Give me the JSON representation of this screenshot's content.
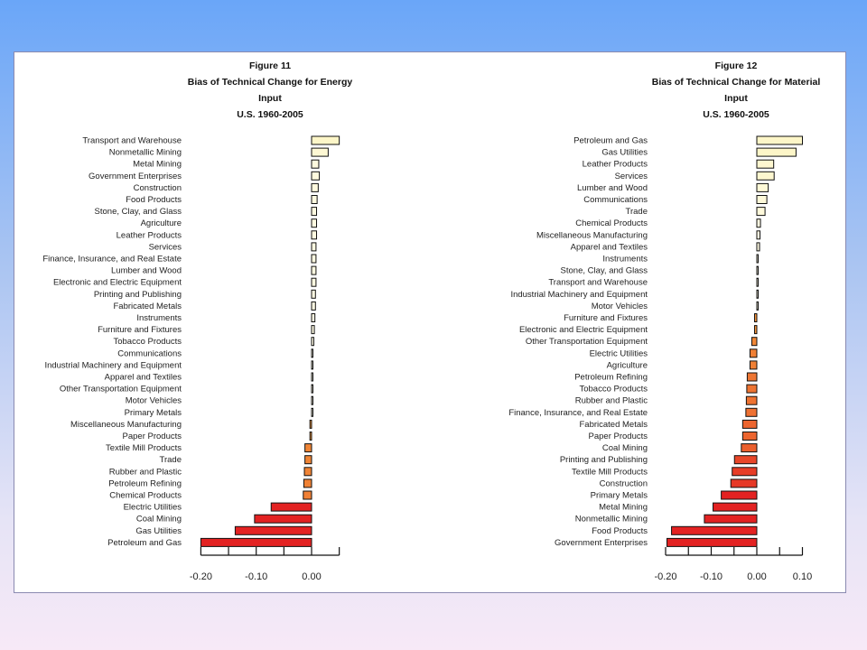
{
  "chart_data": [
    {
      "type": "bar",
      "orientation": "horizontal",
      "title": [
        "Figure 11",
        "Bias of Technical Change for Energy",
        "Input",
        "U.S. 1960-2005"
      ],
      "categories": [
        "Transport and Warehouse",
        "Nonmetallic Mining",
        "Metal Mining",
        "Government Enterprises",
        "Construction",
        "Food Products",
        "Stone, Clay, and Glass",
        "Agriculture",
        "Leather Products",
        "Services",
        "Finance, Insurance, and Real Estate",
        "Lumber and Wood",
        "Electronic and Electric Equipment",
        "Printing and Publishing",
        "Fabricated Metals",
        "Instruments",
        "Furniture and Fixtures",
        "Tobacco Products",
        "Communications",
        "Industrial Machinery and Equipment",
        "Apparel and Textiles",
        "Other Transportation Equipment",
        "Motor Vehicles",
        "Primary Metals",
        "Miscellaneous Manufacturing",
        "Paper Products",
        "Textile Mill Products",
        "Trade",
        "Rubber and Plastic",
        "Petroleum Refining",
        "Chemical Products",
        "Electric Utilities",
        "Coal Mining",
        "Gas Utilities",
        "Petroleum and Gas"
      ],
      "values": [
        0.05,
        0.03,
        0.013,
        0.014,
        0.012,
        0.01,
        0.009,
        0.009,
        0.009,
        0.008,
        0.008,
        0.008,
        0.008,
        0.007,
        0.007,
        0.006,
        0.005,
        0.004,
        0.002,
        0.002,
        0.002,
        0.002,
        0.002,
        0.002,
        -0.003,
        -0.003,
        -0.012,
        -0.012,
        -0.013,
        -0.014,
        -0.015,
        -0.073,
        -0.103,
        -0.138,
        -0.2
      ],
      "ticks": [
        "-0.20",
        "-0.10",
        "0.00"
      ],
      "xlim": [
        -0.2,
        0.05
      ],
      "positive_color": "#fdf6c8",
      "negative_color": "#e32222"
    },
    {
      "type": "bar",
      "orientation": "horizontal",
      "title": [
        "Figure 12",
        "Bias of Technical Change for Material",
        "Input",
        "U.S. 1960-2005"
      ],
      "categories": [
        "Petroleum and Gas",
        "Gas Utilities",
        "Leather Products",
        "Services",
        "Lumber and Wood",
        "Communications",
        "Trade",
        "Chemical Products",
        "Miscellaneous Manufacturing",
        "Apparel and Textiles",
        "Instruments",
        "Stone, Clay, and Glass",
        "Transport and Warehouse",
        "Industrial Machinery and Equipment",
        "Motor Vehicles",
        "Furniture and Fixtures",
        "Electronic and Electric Equipment",
        "Other Transportation Equipment",
        "Electric Utilities",
        "Agriculture",
        "Petroleum Refining",
        "Tobacco Products",
        "Rubber and Plastic",
        "Finance, Insurance, and Real Estate",
        "Fabricated Metals",
        "Paper Products",
        "Coal Mining",
        "Printing and Publishing",
        "Textile Mill Products",
        "Construction",
        "Primary Metals",
        "Metal Mining",
        "Nonmetallic Mining",
        "Food Products",
        "Government Enterprises"
      ],
      "values": [
        0.1,
        0.086,
        0.037,
        0.038,
        0.025,
        0.022,
        0.018,
        0.008,
        0.007,
        0.006,
        0.002,
        0.001,
        0.001,
        0.001,
        0.001,
        -0.005,
        -0.005,
        -0.011,
        -0.015,
        -0.015,
        -0.021,
        -0.022,
        -0.023,
        -0.024,
        -0.031,
        -0.031,
        -0.034,
        -0.049,
        -0.054,
        -0.057,
        -0.078,
        -0.096,
        -0.115,
        -0.187,
        -0.197
      ],
      "ticks": [
        "-0.20",
        "-0.10",
        "0.00",
        "0.10"
      ],
      "xlim": [
        -0.2,
        0.1
      ],
      "positive_color": "#fdf6c8",
      "negative_color": "#e32222"
    }
  ]
}
